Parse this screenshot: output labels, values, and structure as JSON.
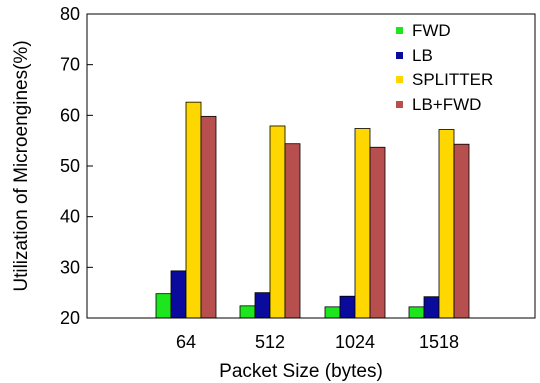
{
  "chart_data": {
    "type": "bar",
    "title": "",
    "xlabel": "Packet Size (bytes)",
    "ylabel": "Utilization of Microengines(%)",
    "ylim": [
      20,
      80
    ],
    "yticks": [
      20,
      30,
      40,
      50,
      60,
      70,
      80
    ],
    "categories": [
      "64",
      "512",
      "1024",
      "1518"
    ],
    "grid": false,
    "legend_position": "top-right",
    "series": [
      {
        "name": "FWD",
        "color": "#1ee61e",
        "values": [
          24.8,
          22.4,
          22.2,
          22.2
        ]
      },
      {
        "name": "LB",
        "color": "#0a0a9c",
        "values": [
          29.3,
          25.0,
          24.3,
          24.2
        ]
      },
      {
        "name": "SPLITTER",
        "color": "#ffd700",
        "values": [
          62.6,
          57.9,
          57.4,
          57.2
        ]
      },
      {
        "name": "LB+FWD",
        "color": "#b84f4f",
        "values": [
          59.8,
          54.4,
          53.7,
          54.3
        ]
      }
    ]
  }
}
